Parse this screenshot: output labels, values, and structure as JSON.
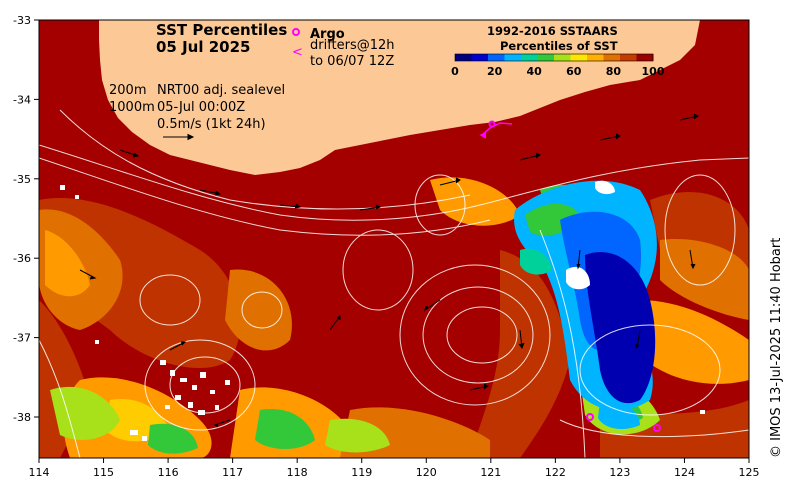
{
  "title": {
    "line1": "SST Percentiles",
    "line2": "05 Jul 2025"
  },
  "legend": {
    "argo_symbol": "o",
    "argo_label": "Argo",
    "drifter_symbol": "<",
    "drifter_label_1": "drifters@12h",
    "drifter_label_2": "to 06/07 12Z"
  },
  "annotations": {
    "contour_200": "200m",
    "contour_1000": "1000m",
    "sealevel": "NRT00 adj. sealevel",
    "datetime": "05-Jul 00:00Z",
    "arrow_scale": "0.5m/s (1kt 24h)"
  },
  "colorbar": {
    "title_1": "1992-2016 SSTAARS",
    "title_2": "Percentiles of SST",
    "ticks": [
      "0",
      "20",
      "40",
      "60",
      "80",
      "100"
    ],
    "colors": [
      "#00007f",
      "#0000cd",
      "#0066ff",
      "#00b4ff",
      "#00d09a",
      "#33c73a",
      "#a8e01a",
      "#ffe600",
      "#ffb000",
      "#e07000",
      "#c43c00",
      "#9b0000"
    ]
  },
  "axes": {
    "x_ticks": [
      "114",
      "115",
      "116",
      "117",
      "118",
      "119",
      "120",
      "121",
      "122",
      "123",
      "124",
      "125"
    ],
    "y_ticks": [
      "-33",
      "-34",
      "-35",
      "-36",
      "-37",
      "-38"
    ]
  },
  "credit": "© IMOS 13-Jul-2025 11:40 Hobart",
  "colors": {
    "land": "#fcc896",
    "sst_high": "#a00000",
    "sst_warm": "#cc4400",
    "sst_mid": "#ff9a00",
    "sst_cool": "#00b4ff",
    "sst_cold": "#0000b0",
    "argo": "#ff00ff",
    "contour": "#ffffff"
  }
}
